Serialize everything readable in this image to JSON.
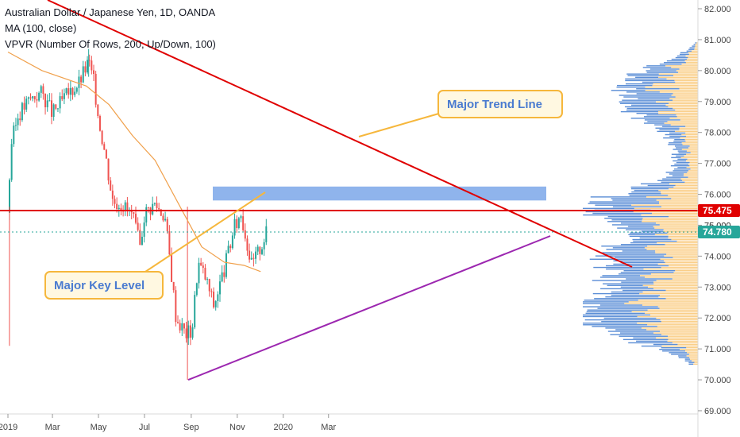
{
  "header": {
    "symbol_line": "Australian Dollar / Japanese Yen, 1D, OANDA",
    "ma_line": "MA (100, close)",
    "vpvr_line": "VPVR (Number Of Rows, 200, Up/Down, 100)"
  },
  "annotations": {
    "trend_label": "Major Trend Line",
    "key_level_label": "Major Key Level"
  },
  "price_labels": {
    "key_level": "75.475",
    "last_price": "74.780",
    "hidden_tick": "75.000"
  },
  "colors": {
    "bull": "#26a69a",
    "bear": "#ef5350",
    "ma": "#f0a04b",
    "trend_line": "#e00000",
    "key_level_line": "#e00000",
    "support_line": "#9c27b0",
    "zone": "#6a9be6",
    "vp_up": "#f9c97a",
    "vp_down": "#5b8ed6",
    "callout_border": "#f6b73c",
    "callout_fill": "#fff8e1",
    "callout_text": "#4a7bd0",
    "last_price_badge": "#26a69a",
    "key_level_badge": "#e00000"
  },
  "chart_data": {
    "type": "candlestick",
    "title": "Australian Dollar / Japanese Yen, 1D, OANDA",
    "y_axis_ticks": [
      "82.000",
      "81.000",
      "80.000",
      "79.000",
      "78.000",
      "77.000",
      "76.000",
      "75.000",
      "74.000",
      "73.000",
      "72.000",
      "71.000",
      "70.000",
      "69.000"
    ],
    "ylim": [
      68.8,
      82.3
    ],
    "x_axis_ticks": [
      "2019",
      "Mar",
      "May",
      "Jul",
      "Sep",
      "Nov",
      "2020",
      "Mar"
    ],
    "price_path": [
      {
        "date": "2019-01-01",
        "close": 75.4
      },
      {
        "date": "2019-01-05",
        "close": 77.6
      },
      {
        "date": "2019-01-15",
        "close": 78.6
      },
      {
        "date": "2019-01-31",
        "close": 79.1
      },
      {
        "date": "2019-02-15",
        "close": 79.3
      },
      {
        "date": "2019-03-01",
        "close": 78.6
      },
      {
        "date": "2019-03-20",
        "close": 79.2
      },
      {
        "date": "2019-04-05",
        "close": 79.6
      },
      {
        "date": "2019-04-18",
        "close": 80.3
      },
      {
        "date": "2019-04-25",
        "close": 79.6
      },
      {
        "date": "2019-05-01",
        "close": 78.5
      },
      {
        "date": "2019-05-10",
        "close": 77.3
      },
      {
        "date": "2019-05-20",
        "close": 75.8
      },
      {
        "date": "2019-06-01",
        "close": 75.7
      },
      {
        "date": "2019-06-15",
        "close": 75.3
      },
      {
        "date": "2019-06-25",
        "close": 74.3
      },
      {
        "date": "2019-07-01",
        "close": 75.4
      },
      {
        "date": "2019-07-15",
        "close": 75.7
      },
      {
        "date": "2019-07-28",
        "close": 75.3
      },
      {
        "date": "2019-08-05",
        "close": 73.6
      },
      {
        "date": "2019-08-12",
        "close": 72.0
      },
      {
        "date": "2019-08-25",
        "close": 71.5
      },
      {
        "date": "2019-09-02",
        "close": 71.6
      },
      {
        "date": "2019-09-10",
        "close": 73.8
      },
      {
        "date": "2019-09-20",
        "close": 73.3
      },
      {
        "date": "2019-10-01",
        "close": 72.4
      },
      {
        "date": "2019-10-15",
        "close": 73.6
      },
      {
        "date": "2019-10-28",
        "close": 74.9
      },
      {
        "date": "2019-11-06",
        "close": 75.4
      },
      {
        "date": "2019-11-20",
        "close": 73.7
      },
      {
        "date": "2019-12-02",
        "close": 74.3
      },
      {
        "date": "2019-12-10",
        "close": 74.78
      }
    ],
    "moving_average_100": [
      {
        "date": "2019-01-01",
        "value": 80.6
      },
      {
        "date": "2019-02-15",
        "value": 80.0
      },
      {
        "date": "2019-04-15",
        "value": 79.5
      },
      {
        "date": "2019-05-15",
        "value": 78.9
      },
      {
        "date": "2019-06-15",
        "value": 77.9
      },
      {
        "date": "2019-07-15",
        "value": 77.1
      },
      {
        "date": "2019-08-15",
        "value": 75.7
      },
      {
        "date": "2019-09-15",
        "value": 74.3
      },
      {
        "date": "2019-10-15",
        "value": 73.8
      },
      {
        "date": "2019-11-10",
        "value": 73.7
      },
      {
        "date": "2019-12-02",
        "value": 73.5
      }
    ],
    "lines": {
      "trend_line": {
        "start": {
          "date": "2018-12-20",
          "value": 82.6
        },
        "end": {
          "date": "2020-02-15",
          "value": 73.6
        }
      },
      "support_line": {
        "start": {
          "date": "2019-08-28",
          "value": 70.0
        },
        "end": {
          "date": "2019-12-22",
          "value": 74.6
        }
      },
      "key_level": 75.475,
      "resistance_zone": [
        75.8,
        76.25
      ]
    },
    "last_price": 74.78,
    "notable_wicks": [
      {
        "date": "2019-01-03",
        "low": 71.1
      },
      {
        "date": "2019-08-27",
        "low": 70.0
      },
      {
        "date": "2019-04-18",
        "high": 80.7
      }
    ],
    "grid": false
  }
}
